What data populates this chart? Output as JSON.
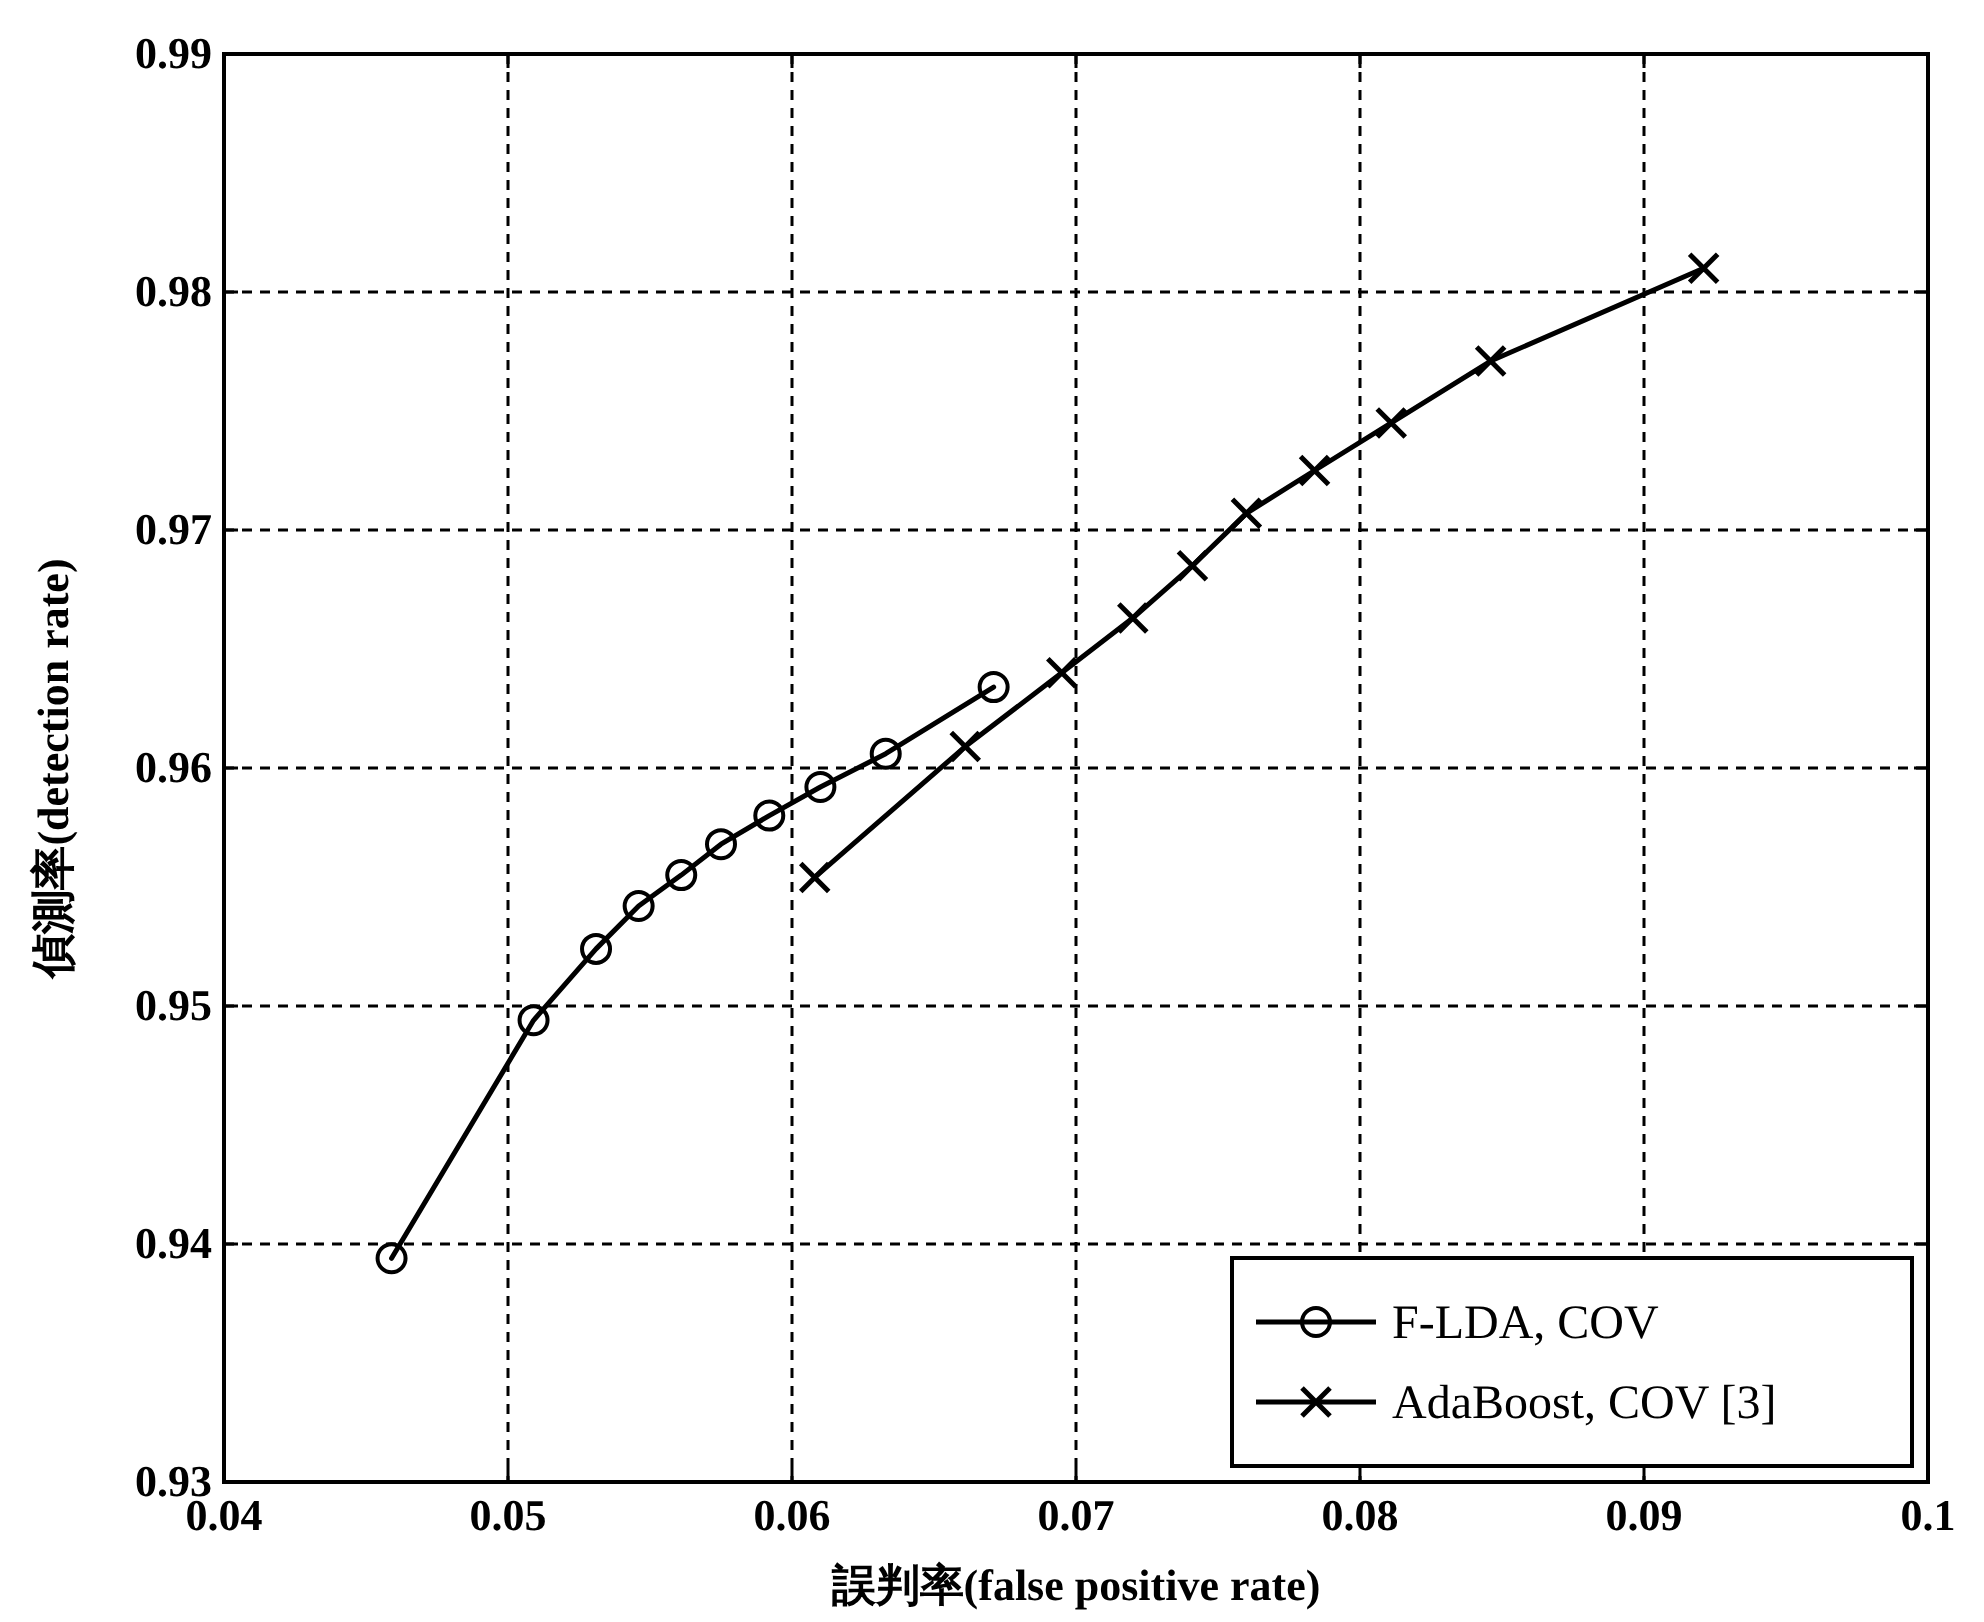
{
  "chart_data": {
    "type": "line",
    "xlabel": "誤判率(false positive rate)",
    "ylabel": "偵測率(detection rate)",
    "xlim": [
      0.04,
      0.1
    ],
    "ylim": [
      0.93,
      0.99
    ],
    "xticks": [
      0.04,
      0.05,
      0.06,
      0.07,
      0.08,
      0.09,
      0.1
    ],
    "yticks": [
      0.93,
      0.94,
      0.95,
      0.96,
      0.97,
      0.98,
      0.99
    ],
    "grid": true,
    "legend": "bottom right",
    "line_style": "solid",
    "series": [
      {
        "name": "F-LDA, COV",
        "color": "#000000",
        "marker": "circle",
        "x": [
          0.0459,
          0.0509,
          0.0531,
          0.0546,
          0.0561,
          0.0575,
          0.0592,
          0.061,
          0.0633,
          0.0671
        ],
        "values": [
          0.9394,
          0.9494,
          0.9524,
          0.9542,
          0.9555,
          0.9568,
          0.958,
          0.9592,
          0.9606,
          0.9634
        ]
      },
      {
        "name": "AdaBoost, COV [3]",
        "color": "#000000",
        "marker": "cross",
        "x": [
          0.0608,
          0.0661,
          0.0695,
          0.072,
          0.0741,
          0.076,
          0.0784,
          0.0811,
          0.0846,
          0.0921
        ],
        "values": [
          0.9554,
          0.9609,
          0.964,
          0.9663,
          0.9685,
          0.9707,
          0.9725,
          0.9745,
          0.9771,
          0.981
        ]
      }
    ]
  }
}
